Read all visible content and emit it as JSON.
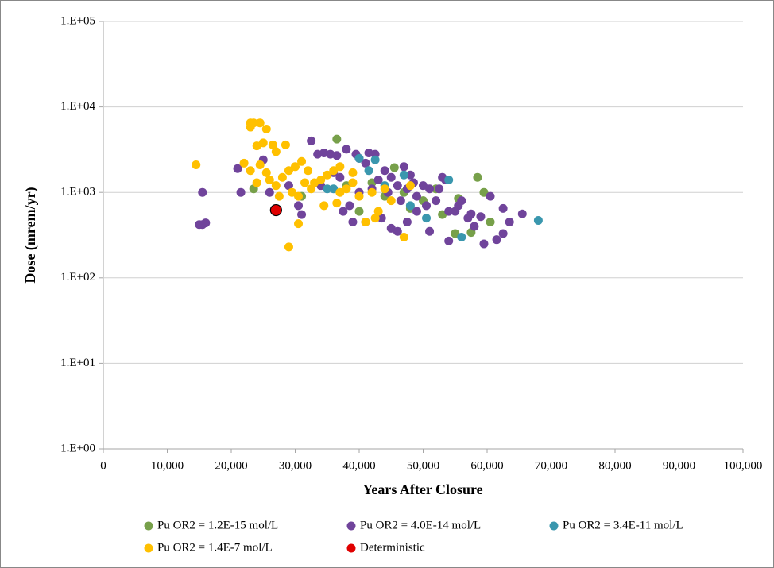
{
  "chart_data": {
    "type": "scatter",
    "xlabel": "Years After Closure",
    "ylabel": "Dose (mrem/yr)",
    "log_y": true,
    "grid": true,
    "xlim": [
      0,
      100000
    ],
    "ylim": [
      1,
      100000
    ],
    "xticks": [
      0,
      {
        "value": 10000,
        "label": "10,000"
      },
      {
        "value": 20000,
        "label": "20,000"
      },
      {
        "value": 30000,
        "label": "30,000"
      },
      {
        "value": 40000,
        "label": "40,000"
      },
      {
        "value": 50000,
        "label": "50,000"
      },
      {
        "value": 60000,
        "label": "60,000"
      },
      {
        "value": 70000,
        "label": "70,000"
      },
      {
        "value": 80000,
        "label": "80,000"
      },
      {
        "value": 90000,
        "label": "90,000"
      },
      {
        "value": 100000,
        "label": "100,000"
      }
    ],
    "yticks": [
      {
        "value": 1,
        "label": "1.E+00"
      },
      {
        "value": 10,
        "label": "1.E+01"
      },
      {
        "value": 100,
        "label": "1.E+02"
      },
      {
        "value": 1000,
        "label": "1.E+03"
      },
      {
        "value": 10000,
        "label": "1.E+04"
      },
      {
        "value": 100000,
        "label": "1.E+05"
      }
    ],
    "legend": "bottom",
    "series": [
      {
        "name": "Pu OR2 = 1.2E-15 mol/L",
        "color": "#77a04a",
        "x": [
          36500,
          23500,
          45500,
          58500,
          59500,
          55500,
          55000,
          57500,
          53000,
          40000,
          31000,
          47000,
          50000,
          42000,
          52000,
          60500,
          38000,
          44000,
          48000
        ],
        "values": [
          4200,
          1100,
          1950,
          1500,
          1000,
          850,
          330,
          340,
          550,
          600,
          900,
          1000,
          800,
          1300,
          1100,
          450,
          1200,
          900,
          650
        ]
      },
      {
        "name": "Pu OR2 = 4.0E-14 mol/L",
        "color": "#70449b",
        "x": [
          15500,
          15500,
          16000,
          15000,
          21500,
          21000,
          25000,
          26000,
          29000,
          31000,
          30500,
          32500,
          33500,
          34500,
          35500,
          36500,
          37000,
          38000,
          39500,
          40000,
          41000,
          41500,
          42500,
          43000,
          44000,
          45000,
          46000,
          47000,
          47500,
          48000,
          49000,
          50000,
          51000,
          52000,
          53000,
          54000,
          54000,
          55000,
          56000,
          57000,
          58000,
          59000,
          59500,
          60500,
          61500,
          62500,
          62500,
          63500,
          65500,
          38500,
          39000,
          41000,
          43500,
          45000,
          46000,
          47500,
          49000,
          51000,
          44500,
          48500,
          50500,
          52500,
          53500,
          42000,
          40000,
          36000,
          34000,
          37500,
          46500,
          55500,
          57500
        ],
        "values": [
          1000,
          420,
          440,
          420,
          1000,
          1900,
          2400,
          1000,
          1200,
          550,
          700,
          4000,
          2800,
          2900,
          2800,
          2700,
          1500,
          3200,
          2800,
          2500,
          2200,
          2900,
          2800,
          1400,
          1800,
          1500,
          1200,
          2000,
          1100,
          1600,
          900,
          1200,
          1100,
          800,
          1500,
          600,
          270,
          600,
          800,
          500,
          400,
          520,
          250,
          900,
          280,
          330,
          650,
          450,
          560,
          700,
          450,
          450,
          500,
          380,
          350,
          450,
          600,
          350,
          1000,
          1300,
          700,
          1100,
          1400,
          1100,
          1000,
          1700,
          1200,
          600,
          800,
          700,
          560
        ]
      },
      {
        "name": "Pu OR2 = 3.4E-11 mol/L",
        "color": "#3a97ae",
        "x": [
          68000,
          54000,
          56000,
          50500,
          41500,
          42500,
          47000,
          48000,
          44000,
          36000,
          35000,
          40000
        ],
        "values": [
          470,
          1400,
          300,
          500,
          1800,
          2400,
          1600,
          700,
          1200,
          1100,
          1100,
          2500
        ]
      },
      {
        "name": "Pu OR2 = 1.4E-7 mol/L",
        "color": "#ffc000",
        "x": [
          14500,
          23000,
          23500,
          24500,
          23000,
          25500,
          24000,
          25000,
          26500,
          28500,
          27000,
          22000,
          23000,
          24500,
          25500,
          26000,
          27000,
          28000,
          29000,
          30000,
          31000,
          32000,
          33000,
          29500,
          30500,
          29000,
          30500,
          34000,
          35000,
          36000,
          37000,
          38000,
          39000,
          40000,
          41000,
          42000,
          43000,
          44000,
          45000,
          47000,
          48000,
          37000,
          39000,
          32500,
          34500,
          36500,
          42500,
          24000,
          27500,
          31500
        ],
        "values": [
          2100,
          6500,
          6500,
          6500,
          5800,
          5500,
          3500,
          3800,
          3600,
          3600,
          3000,
          2200,
          1800,
          2100,
          1700,
          1400,
          1200,
          1500,
          1800,
          2000,
          2300,
          1800,
          1300,
          1000,
          900,
          230,
          430,
          1400,
          1600,
          1800,
          1000,
          1100,
          1300,
          900,
          450,
          1000,
          600,
          1100,
          800,
          300,
          1200,
          2000,
          1700,
          1100,
          700,
          750,
          500,
          1300,
          900,
          1300
        ]
      },
      {
        "name": "Deterministic",
        "color": "#e00000",
        "x": [
          27000
        ],
        "values": [
          620
        ]
      }
    ]
  }
}
